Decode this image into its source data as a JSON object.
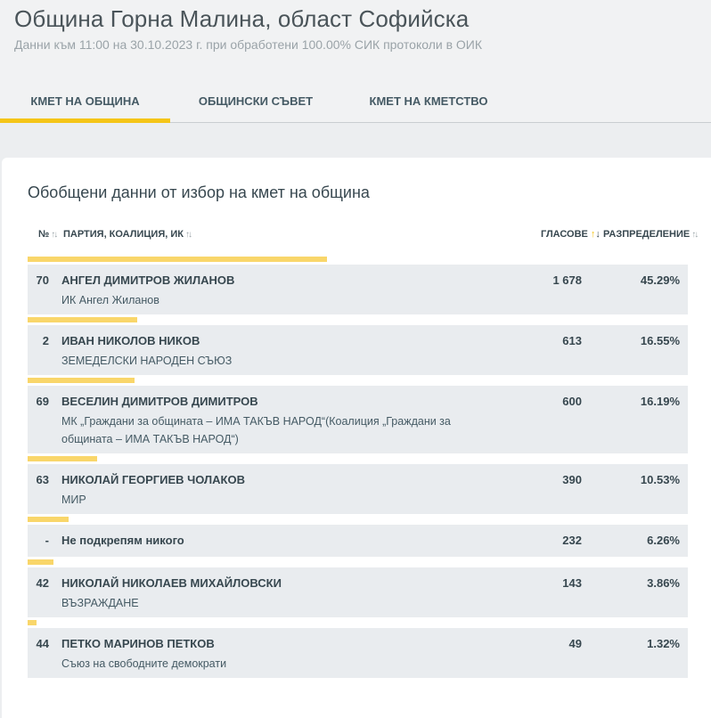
{
  "header": {
    "title": "Община Горна Малина, област Софийска",
    "subtitle": "Данни към 11:00 на 30.10.2023 г. при обработени 100.00% СИК протоколи в ОИК"
  },
  "tabs": [
    {
      "label": "КМЕТ НА ОБЩИНА",
      "active": true
    },
    {
      "label": "ОБЩИНСКИ СЪВЕТ",
      "active": false
    },
    {
      "label": "КМЕТ НА КМЕТСТВО",
      "active": false
    }
  ],
  "section": {
    "title": "Обобщени данни от избор на кмет на община"
  },
  "table": {
    "headers": {
      "number": "№",
      "party": "ПАРТИЯ, КОАЛИЦИЯ, ИК",
      "votes": "ГЛАСОВЕ",
      "distribution": "РАЗПРЕДЕЛЕНИЕ"
    },
    "rows": [
      {
        "number": "70",
        "name": "АНГЕЛ ДИМИТРОВ ЖИЛАНОВ",
        "party": "ИК Ангел Жиланов",
        "votes": "1 678",
        "percent": "45.29%",
        "share": 45.29
      },
      {
        "number": "2",
        "name": "ИВАН НИКОЛОВ НИКОВ",
        "party": "ЗЕМЕДЕЛСКИ НАРОДЕН СЪЮЗ",
        "votes": "613",
        "percent": "16.55%",
        "share": 16.55
      },
      {
        "number": "69",
        "name": "ВЕСЕЛИН ДИМИТРОВ ДИМИТРОВ",
        "party": "МК „Граждани за общината – ИМА ТАКЪВ НАРОД“(Коалиция „Граждани за общината – ИМА ТАКЪВ НАРОД“)",
        "votes": "600",
        "percent": "16.19%",
        "share": 16.19
      },
      {
        "number": "63",
        "name": "НИКОЛАЙ ГЕОРГИЕВ ЧОЛАКОВ",
        "party": "МИР",
        "votes": "390",
        "percent": "10.53%",
        "share": 10.53
      },
      {
        "number": "-",
        "name": "Не подкрепям никого",
        "party": "",
        "votes": "232",
        "percent": "6.26%",
        "share": 6.26
      },
      {
        "number": "42",
        "name": "НИКОЛАЙ НИКОЛАЕВ МИХАЙЛОВСКИ",
        "party": "ВЪЗРАЖДАНЕ",
        "votes": "143",
        "percent": "3.86%",
        "share": 3.86
      },
      {
        "number": "44",
        "name": "ПЕТКО МАРИНОВ ПЕТКОВ",
        "party": "Съюз на свободните демократи",
        "votes": "49",
        "percent": "1.32%",
        "share": 1.32
      }
    ]
  },
  "colors": {
    "accent": "#f5c518",
    "bar": "#f9d66a",
    "row_bg": "#e9ecef"
  }
}
